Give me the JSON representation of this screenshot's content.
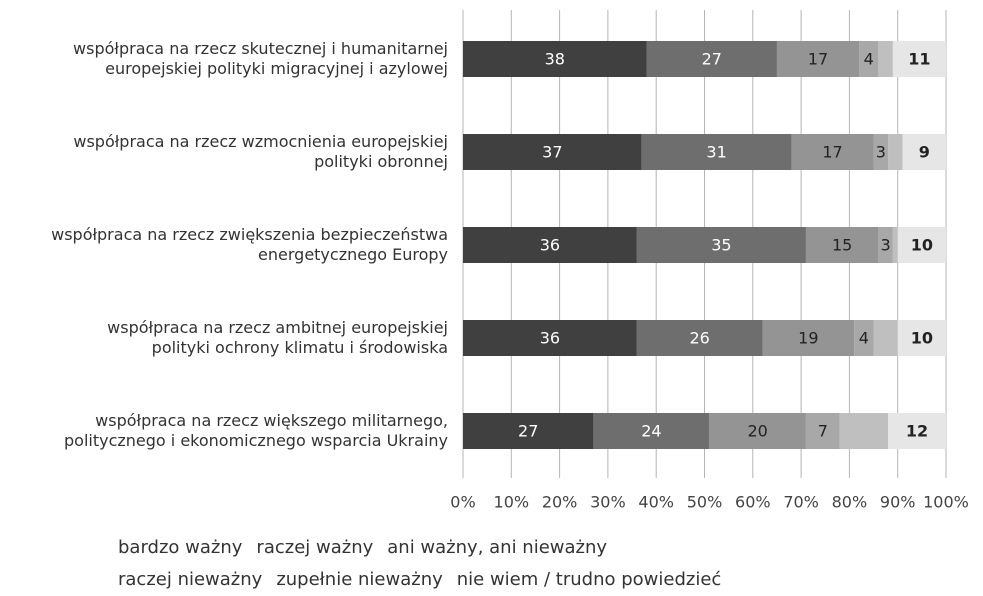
{
  "chart_data": {
    "type": "stacked_barh",
    "categories": [
      "współpraca na rzecz skutecznej i humanitarnej\neuropejskiej polityki migracyjnej i azylowej",
      "współpraca na rzecz wzmocnienia europejskiej\npolityki obronnej",
      "współpraca na rzecz zwiększenia bezpieczeństwa\nenergetycznego Europy",
      "współpraca na rzecz ambitnej europejskiej\npolityki ochrony klimatu i środowiska",
      "współpraca na rzecz większego militarnego,\npolitycznego i ekonomicznego wsparcia Ukrainy"
    ],
    "series": [
      {
        "name": "bardzo ważny",
        "color": "#404040",
        "label_color": "#ffffff",
        "values": [
          38,
          37,
          36,
          36,
          27
        ]
      },
      {
        "name": "raczej ważny",
        "color": "#6e6e6e",
        "label_color": "#ffffff",
        "values": [
          27,
          31,
          35,
          26,
          24
        ]
      },
      {
        "name": "ani ważny, ani nieważny",
        "color": "#949494",
        "label_color": "#222222",
        "values": [
          17,
          17,
          15,
          19,
          20
        ]
      },
      {
        "name": "raczej nieważny",
        "color": "#a8a8a8",
        "label_color": "#222222",
        "values": [
          4,
          3,
          3,
          4,
          7
        ]
      },
      {
        "name": "zupełnie nieważny",
        "color": "#bfbfbf",
        "label_color": "#222222",
        "show_labels": false,
        "values": [
          3,
          3,
          1,
          5,
          10
        ]
      },
      {
        "name": "nie wiem / trudno powiedzieć",
        "color": "#e6e6e6",
        "label_color": "#222222",
        "label_weight": "bold",
        "values": [
          11,
          9,
          10,
          10,
          12
        ]
      }
    ],
    "xlim": [
      0,
      100
    ],
    "xticks": [
      {
        "value": 0,
        "label": "0%"
      },
      {
        "value": 10,
        "label": "10%"
      },
      {
        "value": 20,
        "label": "20%"
      },
      {
        "value": 30,
        "label": "30%"
      },
      {
        "value": 40,
        "label": "40%"
      },
      {
        "value": 50,
        "label": "50%"
      },
      {
        "value": 60,
        "label": "60%"
      },
      {
        "value": 70,
        "label": "70%"
      },
      {
        "value": 80,
        "label": "80%"
      },
      {
        "value": 90,
        "label": "90%"
      },
      {
        "value": 100,
        "label": "100%"
      }
    ],
    "grid": true,
    "legend": "bottom"
  }
}
